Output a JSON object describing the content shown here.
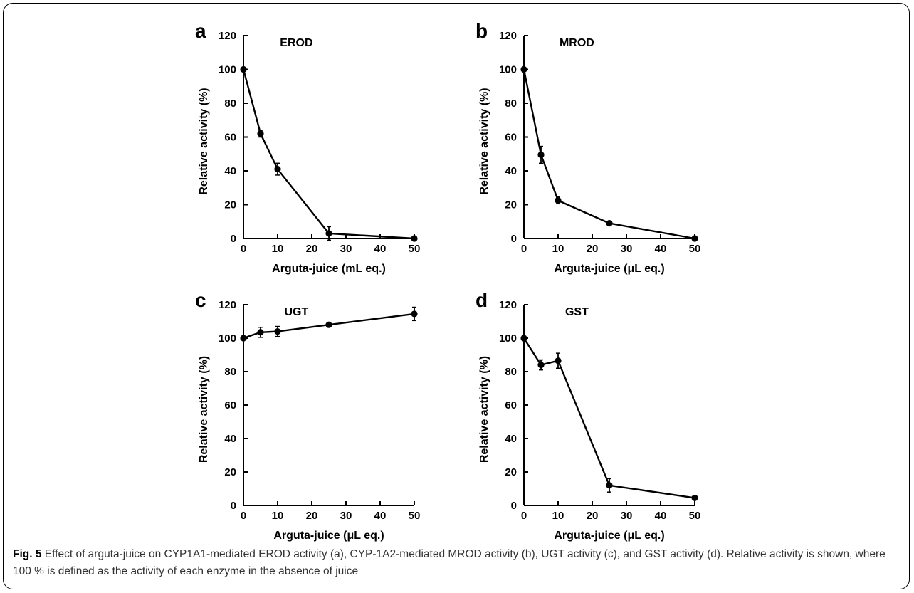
{
  "chart_data": [
    {
      "type": "line",
      "panel": "a",
      "title": "EROD",
      "xlabel": "Arguta-juice  (mL eq.)",
      "ylabel": "Relative activity  (%)",
      "xlim": [
        0,
        50
      ],
      "ylim": [
        0,
        120
      ],
      "xticks": [
        0,
        10,
        20,
        30,
        40,
        50
      ],
      "yticks": [
        0,
        20,
        40,
        60,
        80,
        100,
        120
      ],
      "x": [
        0,
        5,
        10,
        25,
        50
      ],
      "y": [
        100,
        62,
        41,
        3,
        0
      ],
      "error": [
        1,
        2,
        3.5,
        4,
        0
      ]
    },
    {
      "type": "line",
      "panel": "b",
      "title": "MROD",
      "xlabel": "Arguta-juice  (μL eq.)",
      "ylabel": "Relative activity  (%)",
      "xlim": [
        0,
        50
      ],
      "ylim": [
        0,
        120
      ],
      "xticks": [
        0,
        10,
        20,
        30,
        40,
        50
      ],
      "yticks": [
        0,
        20,
        40,
        60,
        80,
        100,
        120
      ],
      "x": [
        0,
        5,
        10,
        25,
        50
      ],
      "y": [
        100,
        49.5,
        22.5,
        9,
        0
      ],
      "error": [
        1,
        5,
        2,
        1,
        0
      ]
    },
    {
      "type": "line",
      "panel": "c",
      "title": "UGT",
      "xlabel": "Arguta-juice  (μL eq.)",
      "ylabel": "Relative activity  (%)",
      "xlim": [
        0,
        50
      ],
      "ylim": [
        0,
        120
      ],
      "xticks": [
        0,
        10,
        20,
        30,
        40,
        50
      ],
      "yticks": [
        0,
        20,
        40,
        60,
        80,
        100,
        120
      ],
      "x": [
        0,
        5,
        10,
        25,
        50
      ],
      "y": [
        100,
        103.5,
        104,
        108,
        114.5
      ],
      "error": [
        1,
        3,
        3,
        1,
        4
      ]
    },
    {
      "type": "line",
      "panel": "d",
      "title": "GST",
      "xlabel": "Arguta-juice  (μL eq.)",
      "ylabel": "Relative activity  (%)",
      "xlim": [
        0,
        50
      ],
      "ylim": [
        0,
        120
      ],
      "xticks": [
        0,
        10,
        20,
        30,
        40,
        50
      ],
      "yticks": [
        0,
        20,
        40,
        60,
        80,
        100,
        120
      ],
      "x": [
        0,
        5,
        10,
        25,
        50
      ],
      "y": [
        100,
        84,
        86.5,
        12,
        4.5
      ],
      "error": [
        1,
        3,
        4.5,
        4,
        1
      ]
    }
  ],
  "caption": {
    "label": "Fig. 5",
    "text": " Effect of arguta-juice on CYP1A1-mediated EROD activity (a), CYP-1A2-mediated MROD activity (b), UGT activity (c), and GST activity (d). Relative activity is shown, where 100 % is defined as the activity of each enzyme in the absence of juice"
  },
  "colors": {
    "line": "#000000",
    "frame": "#000000",
    "caption_text": "#333333"
  }
}
